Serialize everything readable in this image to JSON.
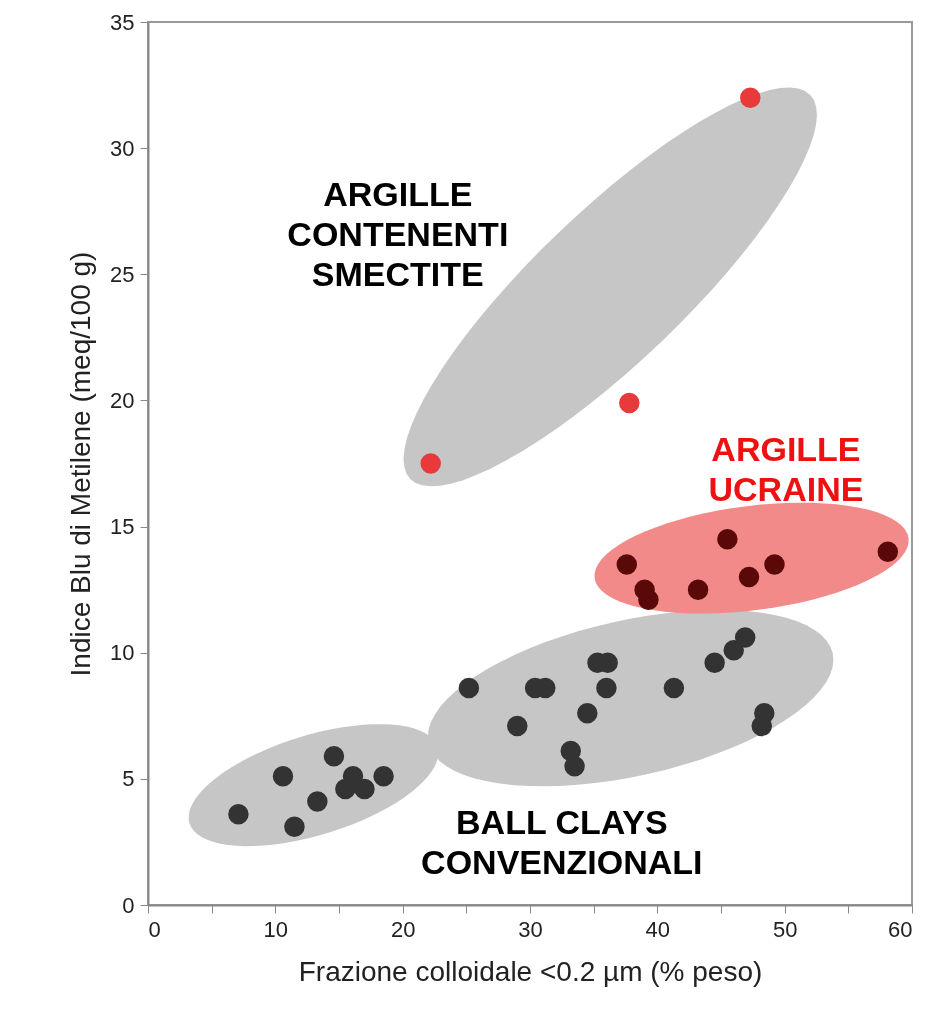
{
  "chart_data": {
    "type": "scatter",
    "xlabel": "Frazione colloidale <0.2 µm (% peso)",
    "ylabel": "Indice Blu di Metilene (meq/100 g)",
    "xlim": [
      0,
      60
    ],
    "ylim": [
      0,
      35
    ],
    "xticks": [
      0,
      {
        "value": 5,
        "label": null
      },
      10,
      {
        "value": 15,
        "label": null
      },
      20,
      {
        "value": 25,
        "label": null
      },
      30,
      {
        "value": 35,
        "label": null
      },
      40,
      {
        "value": 45,
        "label": null
      },
      50,
      {
        "value": 55,
        "label": null
      },
      60
    ],
    "yticks": [
      0,
      5,
      10,
      15,
      20,
      25,
      30,
      35
    ],
    "marker": "circle",
    "grid": false,
    "legend": false,
    "series": [
      {
        "name": "BALL CLAYS\nCONVENZIONALI",
        "color": "#333333",
        "x": [
          7.1,
          10.6,
          11.5,
          13.3,
          14.6,
          16.1,
          15.5,
          17.0,
          18.5,
          25.2,
          29.0,
          30.4,
          31.2,
          33.2,
          33.5,
          34.5,
          35.3,
          36.1,
          36.0,
          41.3,
          44.5,
          46.0,
          46.9,
          48.4,
          48.2
        ],
        "values": [
          3.6,
          5.1,
          3.1,
          4.1,
          5.9,
          5.1,
          4.6,
          4.6,
          5.1,
          8.6,
          7.1,
          8.6,
          8.6,
          6.1,
          5.5,
          7.6,
          9.6,
          9.6,
          8.6,
          8.6,
          9.6,
          10.1,
          10.6,
          7.6,
          7.1
        ]
      },
      {
        "color": "#e83a3a",
        "x": [
          22.2,
          37.8,
          47.3
        ],
        "values": [
          17.5,
          19.9,
          32.0
        ]
      },
      {
        "name": "ARGILLE\nUCRAINE",
        "color": "#5a0808",
        "x": [
          37.6,
          39.0,
          39.3,
          43.2,
          45.5,
          47.2,
          49.2,
          58.1
        ],
        "values": [
          13.5,
          12.5,
          12.1,
          12.5,
          14.5,
          13.0,
          13.5,
          14.0
        ]
      }
    ],
    "annotations": [
      "ARGILLE\nCONTENENTI\nSMECTITE"
    ]
  }
}
